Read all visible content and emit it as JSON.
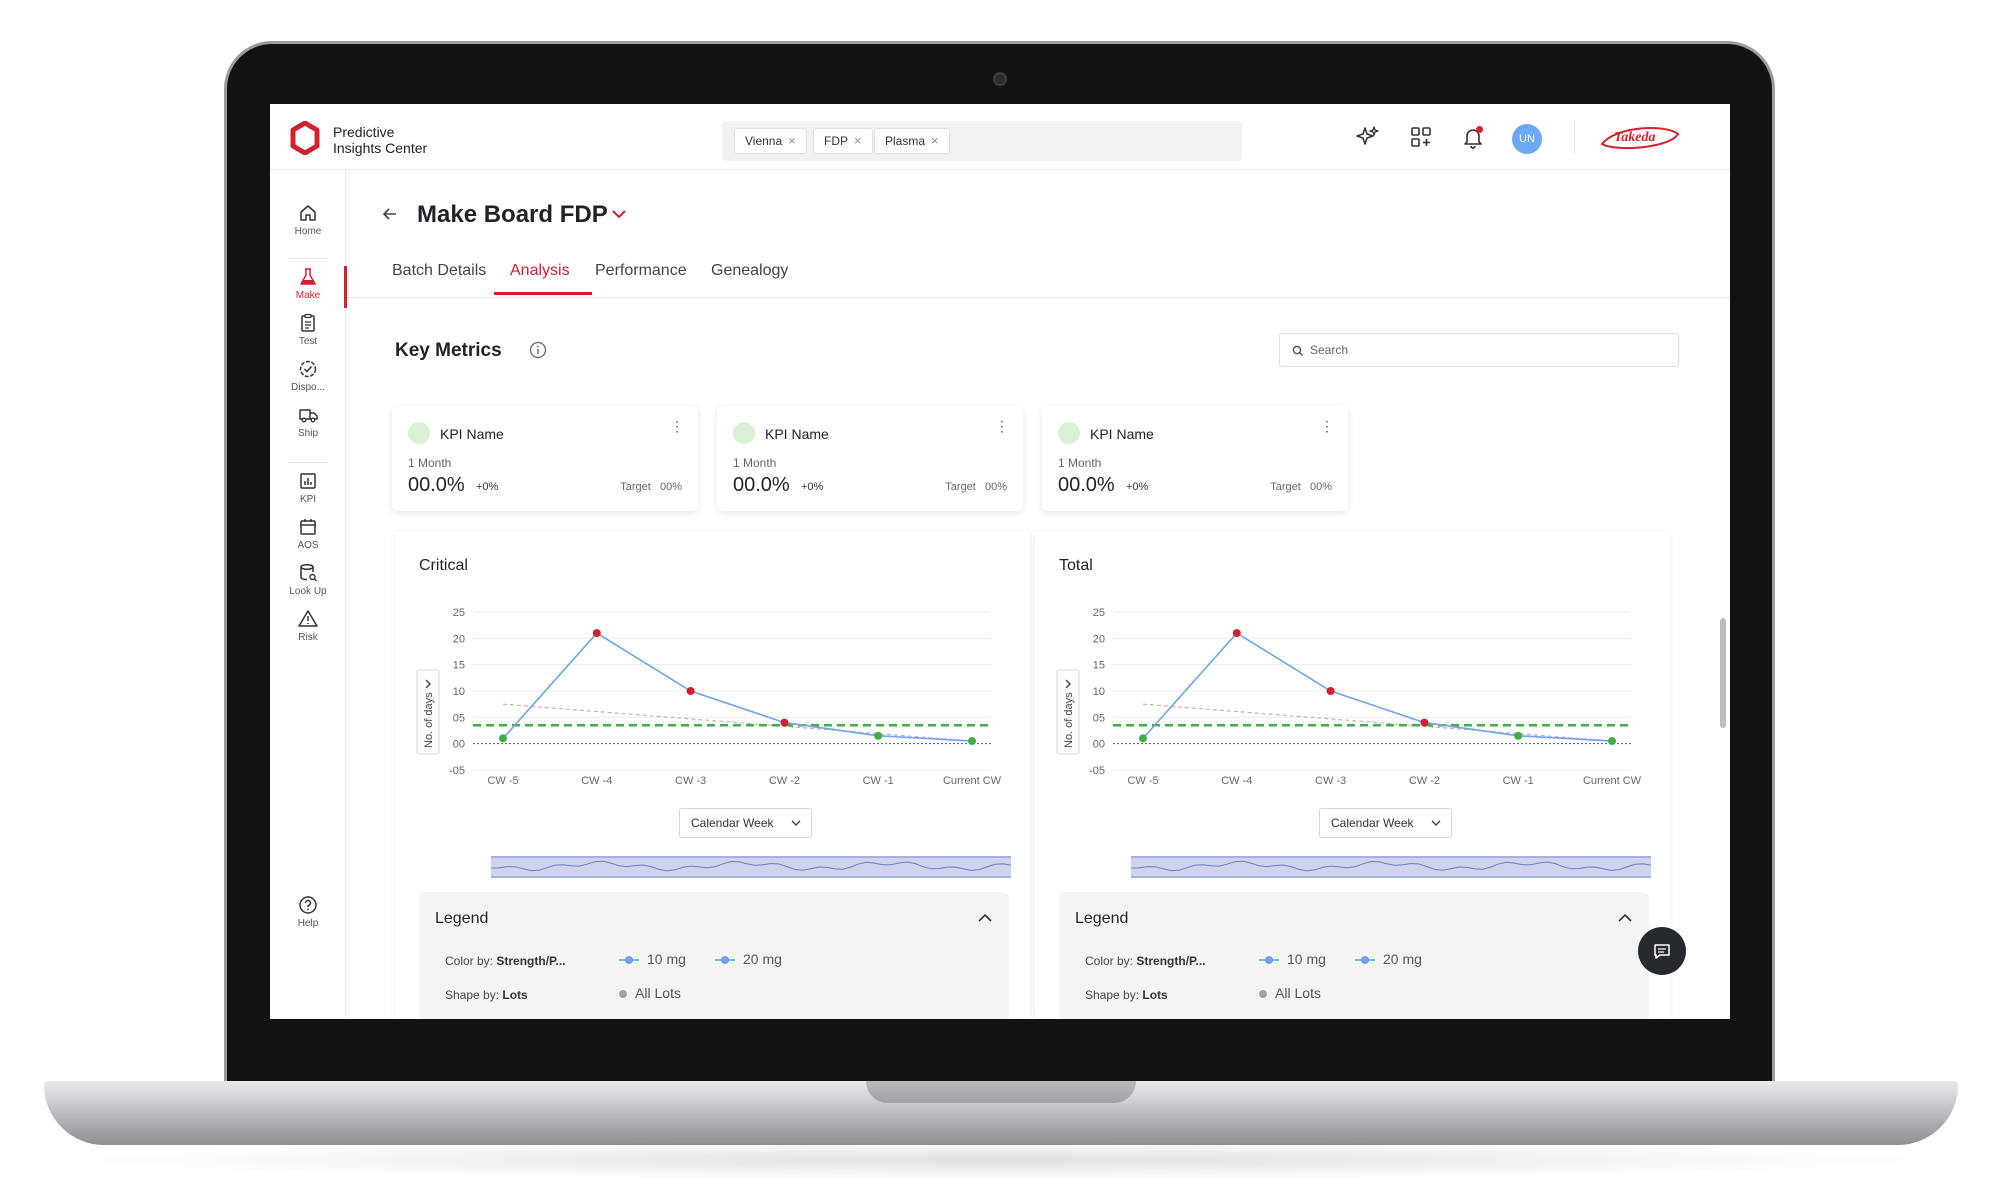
{
  "app": {
    "logo_text_line1": "Predictive",
    "logo_text_line2": "Insights Center",
    "brand_logo_text": "Takeda",
    "avatar_initials": "UN"
  },
  "filters": [
    {
      "label": "Vienna"
    },
    {
      "label": "FDP"
    },
    {
      "label": "Plasma"
    }
  ],
  "sidebar": {
    "items": [
      {
        "label": "Home",
        "icon": "home-icon"
      },
      {
        "label": "Make",
        "icon": "flask-icon",
        "active": true
      },
      {
        "label": "Test",
        "icon": "clipboard-icon"
      },
      {
        "label": "Dispo...",
        "icon": "badge-check-icon"
      },
      {
        "label": "Ship",
        "icon": "truck-icon"
      },
      {
        "label": "KPI",
        "icon": "bar-chart-icon"
      },
      {
        "label": "AOS",
        "icon": "calendar-icon"
      },
      {
        "label": "Look Up",
        "icon": "database-search-icon"
      },
      {
        "label": "Risk",
        "icon": "warning-icon"
      },
      {
        "label": "Help",
        "icon": "help-icon"
      }
    ]
  },
  "header": {
    "title": "Make Board FDP",
    "tabs": [
      {
        "label": "Batch Details"
      },
      {
        "label": "Analysis",
        "active": true
      },
      {
        "label": "Performance"
      },
      {
        "label": "Genealogy"
      }
    ]
  },
  "key_metrics": {
    "title": "Key Metrics",
    "search_placeholder": "Search",
    "cards": [
      {
        "name": "KPI Name",
        "period": "1 Month",
        "value": "00.0%",
        "delta": "+0%",
        "target": "Target   00%"
      },
      {
        "name": "KPI Name",
        "period": "1 Month",
        "value": "00.0%",
        "delta": "+0%",
        "target": "Target   00%"
      },
      {
        "name": "KPI Name",
        "period": "1 Month",
        "value": "00.0%",
        "delta": "+0%",
        "target": "Target   00%"
      }
    ]
  },
  "colors": {
    "accent": "#d3202f",
    "series_line": "#6ea3e8",
    "target_line": "#3fae49",
    "point_red": "#d3202f",
    "point_green": "#3fae49"
  },
  "chart_data": [
    {
      "type": "line",
      "title": "Critical",
      "ylabel": "No. of days",
      "xlabel": "",
      "categories": [
        "CW -5",
        "CW -4",
        "CW -3",
        "CW -2",
        "CW -1",
        "Current CW"
      ],
      "yticks": [
        "25",
        "20",
        "15",
        "10",
        "05",
        "00",
        "-05"
      ],
      "ylim": [
        -5,
        25
      ],
      "series": [
        {
          "values": [
            1,
            21,
            10,
            4,
            1.5,
            0.5
          ]
        }
      ],
      "point_status": [
        "green",
        "red",
        "red",
        "red",
        "green",
        "green"
      ],
      "target": 3.5,
      "trend": [
        7.5,
        0.5
      ],
      "x_selector": "Calendar Week",
      "legend": {
        "title": "Legend",
        "color_by_label": "Color by:",
        "color_by_value": "Strength/P...",
        "color_items": [
          "10 mg",
          "20 mg"
        ],
        "shape_by_label": "Shape by:",
        "shape_by_value": "Lots",
        "shape_items": [
          "All Lots"
        ]
      }
    },
    {
      "type": "line",
      "title": "Total",
      "ylabel": "No. of days",
      "xlabel": "",
      "categories": [
        "CW -5",
        "CW -4",
        "CW -3",
        "CW -2",
        "CW -1",
        "Current CW"
      ],
      "yticks": [
        "25",
        "20",
        "15",
        "10",
        "05",
        "00",
        "-05"
      ],
      "ylim": [
        -5,
        25
      ],
      "series": [
        {
          "values": [
            1,
            21,
            10,
            4,
            1.5,
            0.5
          ]
        }
      ],
      "point_status": [
        "green",
        "red",
        "red",
        "red",
        "green",
        "green"
      ],
      "target": 3.5,
      "trend": [
        7.5,
        0.5
      ],
      "x_selector": "Calendar Week",
      "legend": {
        "title": "Legend",
        "color_by_label": "Color by:",
        "color_by_value": "Strength/P...",
        "color_items": [
          "10 mg",
          "20 mg"
        ],
        "shape_by_label": "Shape by:",
        "shape_by_value": "Lots",
        "shape_items": [
          "All Lots"
        ]
      }
    }
  ]
}
